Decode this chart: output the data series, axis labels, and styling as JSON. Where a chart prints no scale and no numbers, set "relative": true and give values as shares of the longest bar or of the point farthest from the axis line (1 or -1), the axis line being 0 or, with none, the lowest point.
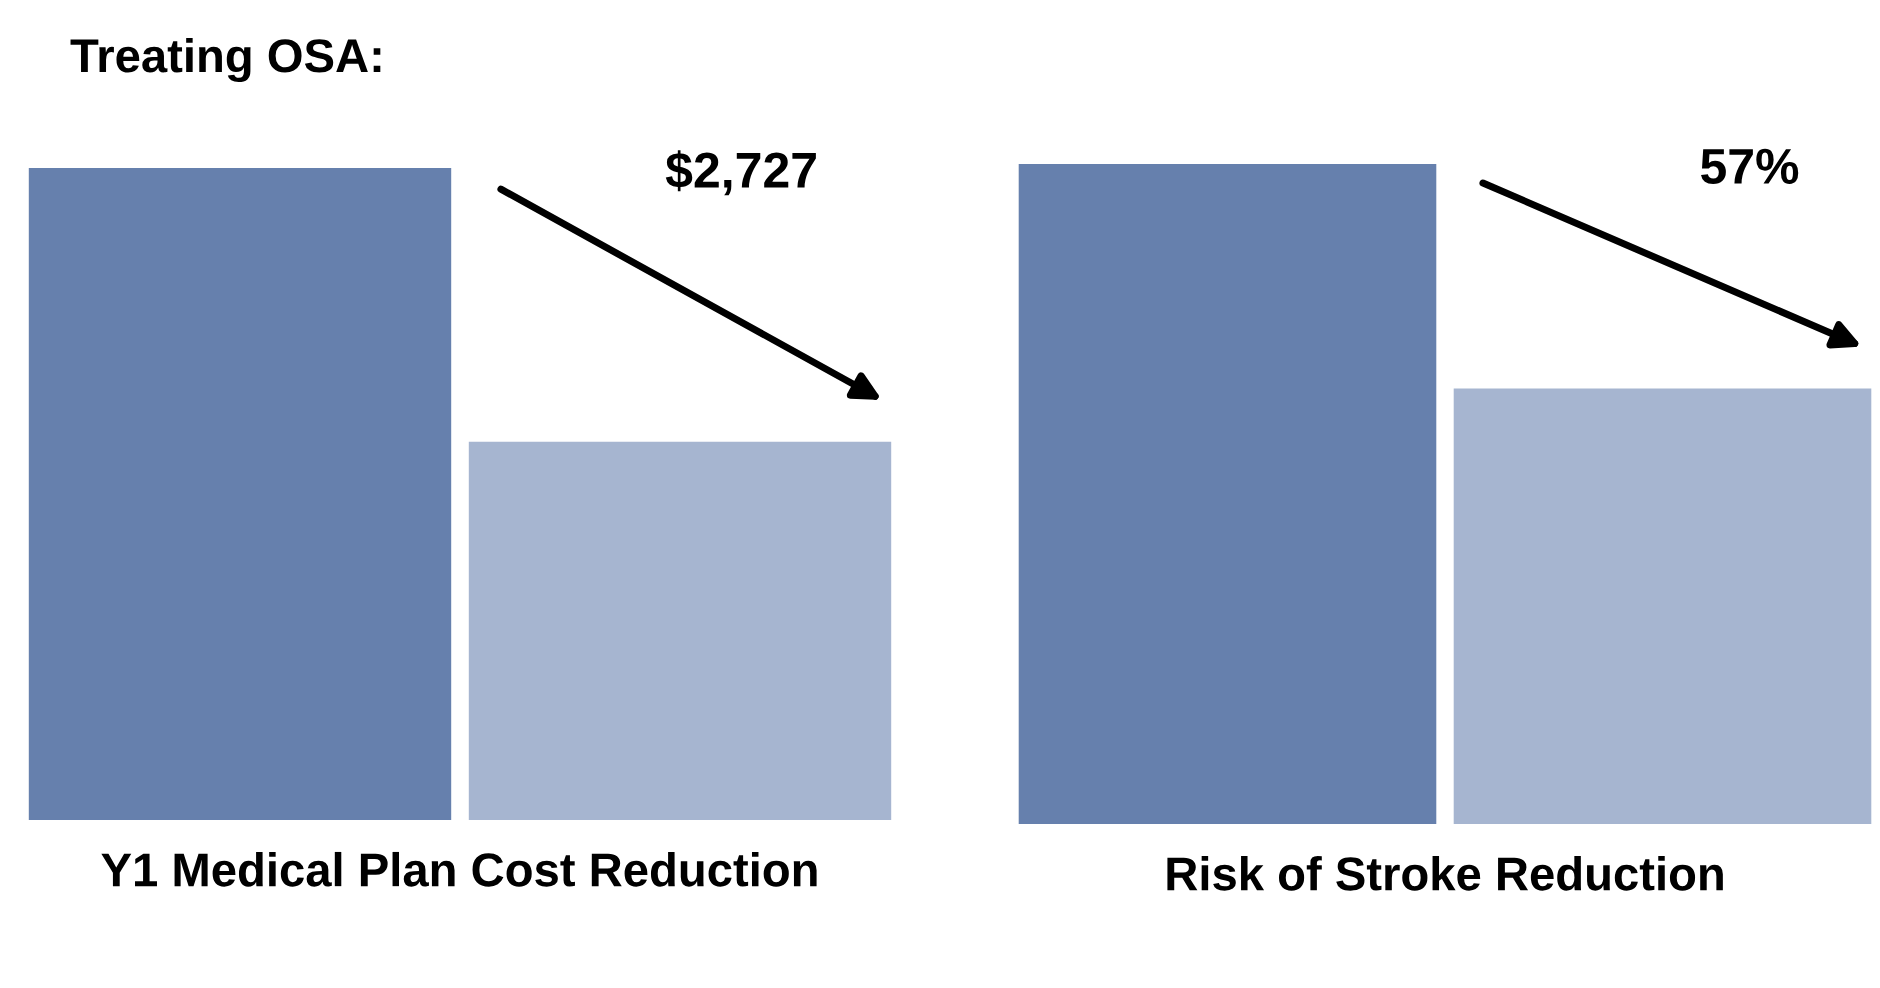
{
  "chart_data": [
    {
      "type": "bar",
      "title": "Treating OSA:",
      "relative": true,
      "categories": [
        null,
        null
      ],
      "values": [
        1,
        0.58
      ],
      "colors": [
        "#6680ad",
        "#a6b5d0"
      ],
      "xlabel": "Y1 Medical Plan Cost Reduction",
      "annotations": [
        "$2,727"
      ]
    },
    {
      "type": "bar",
      "relative": true,
      "categories": [
        null,
        null
      ],
      "values": [
        1,
        0.66
      ],
      "colors": [
        "#6680ad",
        "#a6b5d0"
      ],
      "xlabel": "Risk of Stroke Reduction",
      "annotations": [
        "57%"
      ]
    }
  ]
}
